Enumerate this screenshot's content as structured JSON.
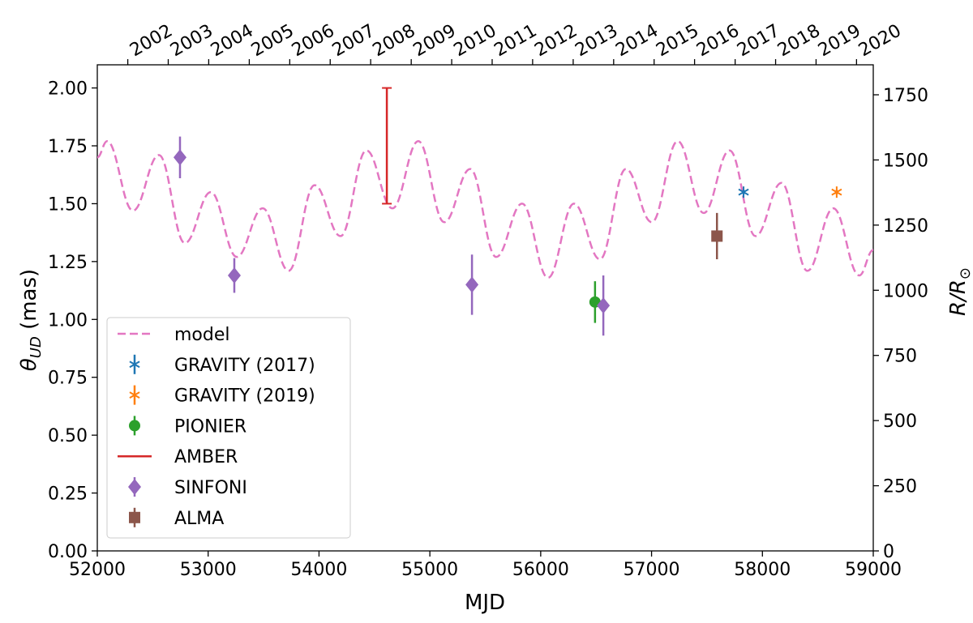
{
  "chart_data": {
    "type": "errorbar",
    "xlabel": "MJD",
    "ylabel": {
      "symbol": "θ",
      "subscript": "UD",
      "rest": " (mas)"
    },
    "y2label": {
      "text": "R/R",
      "subscript": "⊙"
    },
    "xlim": [
      52000,
      59000
    ],
    "xticks": [
      52000,
      53000,
      54000,
      55000,
      56000,
      57000,
      58000,
      59000
    ],
    "x2ticks": [
      {
        "value": 52275,
        "label": "2002"
      },
      {
        "value": 52640,
        "label": "2003"
      },
      {
        "value": 53005,
        "label": "2004"
      },
      {
        "value": 53371,
        "label": "2005"
      },
      {
        "value": 53736,
        "label": "2006"
      },
      {
        "value": 54101,
        "label": "2007"
      },
      {
        "value": 54466,
        "label": "2008"
      },
      {
        "value": 54832,
        "label": "2009"
      },
      {
        "value": 55197,
        "label": "2010"
      },
      {
        "value": 55562,
        "label": "2011"
      },
      {
        "value": 55927,
        "label": "2012"
      },
      {
        "value": 56293,
        "label": "2013"
      },
      {
        "value": 56658,
        "label": "2014"
      },
      {
        "value": 57023,
        "label": "2015"
      },
      {
        "value": 57388,
        "label": "2016"
      },
      {
        "value": 57754,
        "label": "2017"
      },
      {
        "value": 58119,
        "label": "2018"
      },
      {
        "value": 58484,
        "label": "2019"
      },
      {
        "value": 58849,
        "label": "2020"
      }
    ],
    "ylim": [
      0,
      2.1
    ],
    "yticks": [
      {
        "value": 0,
        "label": "0.00"
      },
      {
        "value": 0.25,
        "label": "0.25"
      },
      {
        "value": 0.5,
        "label": "0.50"
      },
      {
        "value": 0.75,
        "label": "0.75"
      },
      {
        "value": 1,
        "label": "1.00"
      },
      {
        "value": 1.25,
        "label": "1.25"
      },
      {
        "value": 1.5,
        "label": "1.50"
      },
      {
        "value": 1.75,
        "label": "1.75"
      },
      {
        "value": 2,
        "label": "2.00"
      }
    ],
    "y2lim": [
      0,
      1865
    ],
    "y2ticks": [
      0,
      250,
      500,
      750,
      1000,
      1250,
      1500,
      1750
    ],
    "legend": "lower left",
    "series": [
      {
        "name": "model",
        "color": "#e377c2",
        "marker": "none",
        "linestyle": "dashed",
        "x": [
          52000,
          52088,
          52322,
          52556,
          52790,
          53024,
          53258,
          53492,
          53726,
          53960,
          54194,
          54428,
          54662,
          54896,
          55130,
          55364,
          55598,
          55832,
          56066,
          56300,
          56534,
          56768,
          57002,
          57236,
          57470,
          57704,
          57938,
          58172,
          58406,
          58640,
          58874,
          59000
        ],
        "values": [
          1.7,
          1.77,
          1.47,
          1.71,
          1.33,
          1.55,
          1.27,
          1.48,
          1.21,
          1.58,
          1.36,
          1.73,
          1.48,
          1.77,
          1.42,
          1.65,
          1.27,
          1.5,
          1.18,
          1.5,
          1.26,
          1.65,
          1.42,
          1.77,
          1.46,
          1.73,
          1.36,
          1.59,
          1.21,
          1.48,
          1.19,
          1.3
        ]
      },
      {
        "name": "GRAVITY (2017)",
        "color": "#1f77b4",
        "marker": "star",
        "linestyle": "none",
        "x": [
          57830
        ],
        "values": [
          1.55
        ],
        "errors": [
          0.01
        ]
      },
      {
        "name": "GRAVITY (2019)",
        "color": "#ff7f0e",
        "marker": "star",
        "linestyle": "none",
        "x": [
          58670
        ],
        "values": [
          1.55
        ],
        "errors": [
          0.01
        ]
      },
      {
        "name": "PIONIER",
        "color": "#2ca02c",
        "marker": "circle",
        "linestyle": "none",
        "x": [
          56490
        ],
        "values": [
          1.075
        ],
        "errors": [
          0.09
        ]
      },
      {
        "name": "AMBER",
        "color": "#d62728",
        "marker": "none",
        "linestyle": "none",
        "capped": true,
        "x": [
          54612
        ],
        "values": [
          1.75
        ],
        "errors": [
          0.25
        ]
      },
      {
        "name": "SINFONI",
        "color": "#9467bd",
        "marker": "diamond",
        "linestyle": "none",
        "x": [
          52746,
          53236,
          55380,
          56565
        ],
        "values": [
          1.7,
          1.19,
          1.15,
          1.06
        ],
        "errors": [
          0.09,
          0.075,
          0.13,
          0.13
        ]
      },
      {
        "name": "ALMA",
        "color": "#8c564b",
        "marker": "square",
        "linestyle": "none",
        "x": [
          57590
        ],
        "values": [
          1.36
        ],
        "errors": [
          0.1
        ]
      }
    ]
  }
}
